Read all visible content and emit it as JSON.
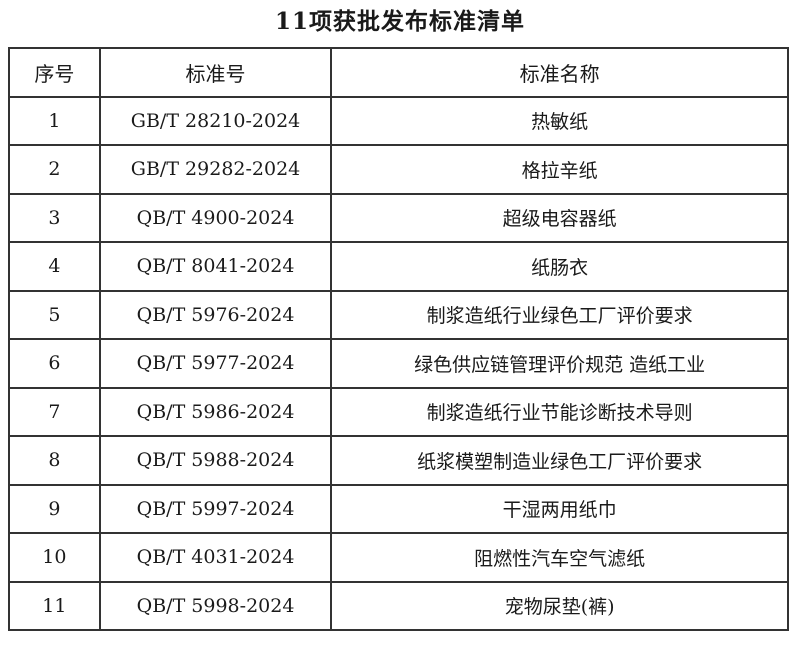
{
  "title": "11项获批发布标准清单",
  "headers": [
    "序号",
    "标准号",
    "标准名称"
  ],
  "rows": [
    [
      "1",
      "GB/T 28210-2024",
      "热敏纸"
    ],
    [
      "2",
      "GB/T 29282-2024",
      "格拉辛纸"
    ],
    [
      "3",
      "QB/T 4900-2024",
      "超级电容器纸"
    ],
    [
      "4",
      "QB/T 8041-2024",
      "纸肠衣"
    ],
    [
      "5",
      "QB/T 5976-2024",
      "制浆造纸行业绿色工厂评价要求"
    ],
    [
      "6",
      "QB/T 5977-2024",
      "绿色供应链管理评价规范 造纸工业"
    ],
    [
      "7",
      "QB/T 5986-2024",
      "制浆造纸行业节能诊断技术导则"
    ],
    [
      "8",
      "QB/T 5988-2024",
      "纸浆模塑制造业绿色工厂评价要求"
    ],
    [
      "9",
      "QB/T 5997-2024",
      "干湿两用纸巾"
    ],
    [
      "10",
      "QB/T 4031-2024",
      "阻燃性汽车空气滤纸"
    ],
    [
      "11",
      "QB/T 5998-2024",
      "宠物尿垫(裤)"
    ]
  ]
}
